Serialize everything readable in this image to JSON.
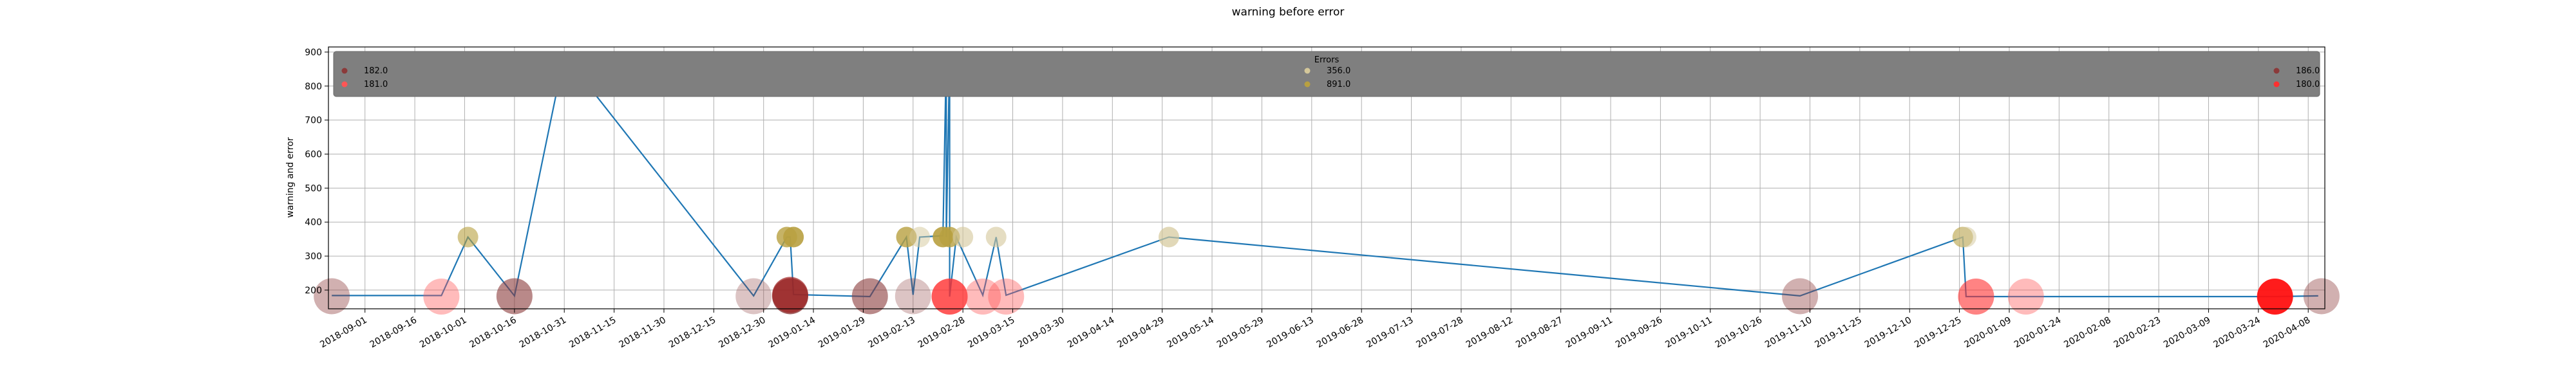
{
  "chart_data": {
    "type": "scatter",
    "title": "warning before error",
    "xlabel": "",
    "ylabel": "warning and error",
    "ylim": [
      145,
      915
    ],
    "xlim": [
      "2018-08-21",
      "2020-04-13"
    ],
    "yticks": [
      200,
      300,
      400,
      500,
      600,
      700,
      800,
      900
    ],
    "xticks": [
      "2018-09-01",
      "2018-09-16",
      "2018-10-01",
      "2018-10-16",
      "2018-10-31",
      "2018-11-15",
      "2018-11-30",
      "2018-12-15",
      "2018-12-30",
      "2019-01-14",
      "2019-01-29",
      "2019-02-13",
      "2019-02-28",
      "2019-03-15",
      "2019-03-30",
      "2019-04-14",
      "2019-04-29",
      "2019-05-14",
      "2019-05-29",
      "2019-06-13",
      "2019-06-28",
      "2019-07-13",
      "2019-07-28",
      "2019-08-12",
      "2019-08-27",
      "2019-09-11",
      "2019-09-26",
      "2019-10-11",
      "2019-10-26",
      "2019-11-10",
      "2019-11-25",
      "2019-12-10",
      "2019-12-25",
      "2020-01-09",
      "2020-01-24",
      "2020-02-08",
      "2020-02-23",
      "2020-03-09",
      "2020-03-24",
      "2020-04-08"
    ],
    "grid": true,
    "legend": {
      "title": "Errors",
      "placement": "top",
      "entries": [
        {
          "label": "182.0",
          "color": "#8b3a3a"
        },
        {
          "label": "181.0",
          "color": "#ff5555"
        },
        {
          "label": "356.0",
          "color": "#d4c79a"
        },
        {
          "label": "891.0",
          "color": "#b8a040"
        },
        {
          "label": "186.0",
          "color": "#8b3a3a"
        },
        {
          "label": "180.0",
          "color": "#ff3030"
        }
      ]
    },
    "line": {
      "color": "#1f77b4",
      "points": [
        {
          "x": "2018-08-22",
          "y": 184
        },
        {
          "x": "2018-09-24",
          "y": 184
        },
        {
          "x": "2018-10-02",
          "y": 356
        },
        {
          "x": "2018-10-16",
          "y": 183
        },
        {
          "x": "2018-10-31",
          "y": 891
        },
        {
          "x": "2018-12-27",
          "y": 183
        },
        {
          "x": "2019-01-06",
          "y": 356
        },
        {
          "x": "2019-01-07",
          "y": 356
        },
        {
          "x": "2019-01-08",
          "y": 187
        },
        {
          "x": "2019-01-31",
          "y": 181
        },
        {
          "x": "2019-02-11",
          "y": 356
        },
        {
          "x": "2019-02-13",
          "y": 186
        },
        {
          "x": "2019-02-15",
          "y": 356
        },
        {
          "x": "2019-02-22",
          "y": 360
        },
        {
          "x": "2019-02-23",
          "y": 891
        },
        {
          "x": "2019-02-23",
          "y": 356
        },
        {
          "x": "2019-02-24",
          "y": 891
        },
        {
          "x": "2019-02-24",
          "y": 181
        },
        {
          "x": "2019-02-26",
          "y": 356
        },
        {
          "x": "2019-03-06",
          "y": 185
        },
        {
          "x": "2019-03-10",
          "y": 356
        },
        {
          "x": "2019-03-13",
          "y": 185
        },
        {
          "x": "2019-05-01",
          "y": 356
        },
        {
          "x": "2019-11-07",
          "y": 183
        },
        {
          "x": "2019-12-26",
          "y": 356
        },
        {
          "x": "2019-12-27",
          "y": 181
        },
        {
          "x": "2020-01-14",
          "y": 181
        },
        {
          "x": "2020-03-29",
          "y": 181
        },
        {
          "x": "2020-04-11",
          "y": 183
        }
      ]
    },
    "markers": [
      {
        "x": "2018-08-22",
        "y": 182,
        "color": "#8b3a3a",
        "alpha": 0.4,
        "size": "large"
      },
      {
        "x": "2018-09-24",
        "y": 181,
        "color": "#ff5555",
        "alpha": 0.4,
        "size": "large"
      },
      {
        "x": "2018-10-02",
        "y": 356,
        "color": "#b8a040",
        "alpha": 0.6,
        "size": "small"
      },
      {
        "x": "2018-10-16",
        "y": 182,
        "color": "#8b3a3a",
        "alpha": 0.6,
        "size": "large"
      },
      {
        "x": "2018-12-27",
        "y": 182,
        "color": "#8b3a3a",
        "alpha": 0.3,
        "size": "large"
      },
      {
        "x": "2019-01-06",
        "y": 356,
        "color": "#b8a040",
        "alpha": 0.8,
        "size": "small"
      },
      {
        "x": "2019-01-08",
        "y": 356,
        "color": "#b8a040",
        "alpha": 0.9,
        "size": "small"
      },
      {
        "x": "2019-01-07",
        "y": 182,
        "color": "#8b3a3a",
        "alpha": 0.8,
        "size": "large"
      },
      {
        "x": "2019-01-07",
        "y": 186,
        "color": "#a02020",
        "alpha": 0.7,
        "size": "large"
      },
      {
        "x": "2019-01-31",
        "y": 182,
        "color": "#8b3a3a",
        "alpha": 0.6,
        "size": "large"
      },
      {
        "x": "2019-02-11",
        "y": 356,
        "color": "#b8a040",
        "alpha": 0.8,
        "size": "small"
      },
      {
        "x": "2019-02-13",
        "y": 182,
        "color": "#8b3a3a",
        "alpha": 0.3,
        "size": "large"
      },
      {
        "x": "2019-02-15",
        "y": 356,
        "color": "#d4c79a",
        "alpha": 0.5,
        "size": "small"
      },
      {
        "x": "2019-02-22",
        "y": 356,
        "color": "#b8a040",
        "alpha": 0.9,
        "size": "small"
      },
      {
        "x": "2019-02-23",
        "y": 891,
        "color": "#b8a040",
        "alpha": 0.6,
        "size": "tiny"
      },
      {
        "x": "2019-02-24",
        "y": 356,
        "color": "#b8a040",
        "alpha": 0.8,
        "size": "small"
      },
      {
        "x": "2019-02-24",
        "y": 181,
        "color": "#ff3030",
        "alpha": 0.8,
        "size": "large"
      },
      {
        "x": "2019-02-28",
        "y": 356,
        "color": "#d4c79a",
        "alpha": 0.6,
        "size": "small"
      },
      {
        "x": "2019-03-06",
        "y": 181,
        "color": "#ff5555",
        "alpha": 0.4,
        "size": "large"
      },
      {
        "x": "2019-03-10",
        "y": 356,
        "color": "#d4c79a",
        "alpha": 0.6,
        "size": "small"
      },
      {
        "x": "2019-03-13",
        "y": 181,
        "color": "#ff5555",
        "alpha": 0.4,
        "size": "large"
      },
      {
        "x": "2019-05-01",
        "y": 356,
        "color": "#d4c79a",
        "alpha": 0.7,
        "size": "small"
      },
      {
        "x": "2019-11-07",
        "y": 182,
        "color": "#8b3a3a",
        "alpha": 0.4,
        "size": "large"
      },
      {
        "x": "2019-12-26",
        "y": 356,
        "color": "#b8a040",
        "alpha": 0.6,
        "size": "small"
      },
      {
        "x": "2019-12-27",
        "y": 356,
        "color": "#d4c79a",
        "alpha": 0.5,
        "size": "small"
      },
      {
        "x": "2019-12-30",
        "y": 181,
        "color": "#ff3030",
        "alpha": 0.6,
        "size": "large"
      },
      {
        "x": "2020-01-14",
        "y": 181,
        "color": "#ff5555",
        "alpha": 0.4,
        "size": "large"
      },
      {
        "x": "2020-03-29",
        "y": 181,
        "color": "#ff1010",
        "alpha": 0.95,
        "size": "large"
      },
      {
        "x": "2020-04-12",
        "y": 182,
        "color": "#8b3a3a",
        "alpha": 0.4,
        "size": "large"
      }
    ]
  }
}
